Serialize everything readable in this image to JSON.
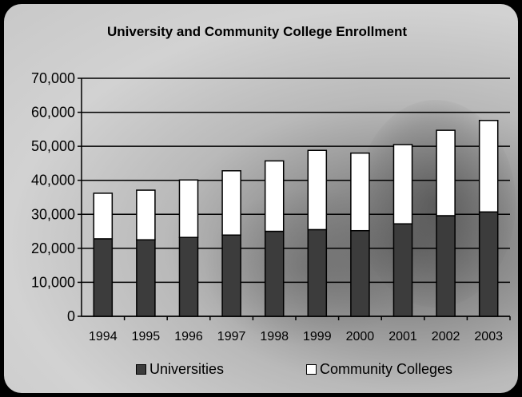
{
  "chart_data": {
    "type": "bar",
    "stacked": true,
    "title": "University and Community College Enrollment",
    "categories": [
      "1994",
      "1995",
      "1996",
      "1997",
      "1998",
      "1999",
      "2000",
      "2001",
      "2002",
      "2003"
    ],
    "series": [
      {
        "name": "Universities",
        "color": "#3c3c3c",
        "values": [
          22800,
          22500,
          23200,
          23900,
          25000,
          25500,
          25200,
          27200,
          29600,
          30700
        ]
      },
      {
        "name": "Community Colleges",
        "color": "#ffffff",
        "values": [
          13400,
          14600,
          16900,
          18900,
          20700,
          23300,
          22800,
          23300,
          25100,
          26900
        ]
      }
    ],
    "ylim": [
      0,
      70000
    ],
    "yticks": [
      "0",
      "10,000",
      "20,000",
      "30,000",
      "40,000",
      "50,000",
      "60,000",
      "70,000"
    ],
    "grid": true,
    "legend_position": "bottom"
  }
}
